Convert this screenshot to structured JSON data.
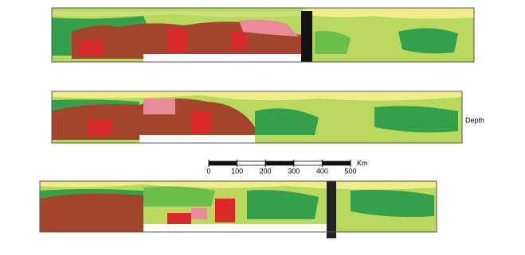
{
  "scale_bar": {
    "ticks": [
      0,
      100,
      200,
      300,
      400,
      500
    ],
    "unit": "Km"
  },
  "panel_labels": [
    "Depth"
  ]
}
